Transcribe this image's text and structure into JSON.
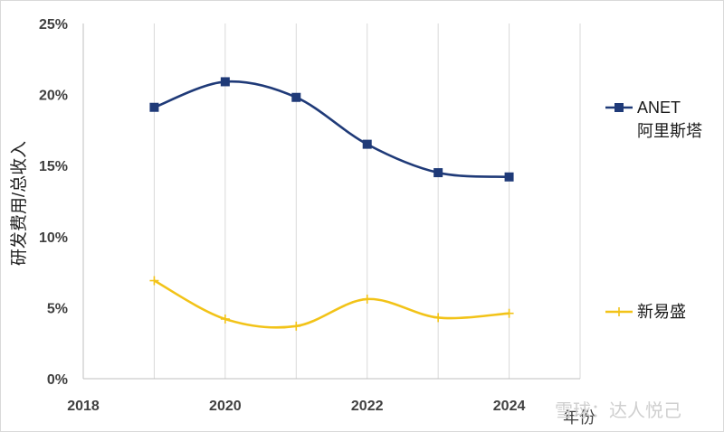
{
  "chart_data": {
    "type": "line",
    "title": "",
    "xlabel": "年份",
    "ylabel": "研发费用/总收入",
    "x_ticks": [
      2018,
      2020,
      2022,
      2024
    ],
    "y_ticks": [
      "0%",
      "5%",
      "10%",
      "15%",
      "20%",
      "25%"
    ],
    "xlim": [
      2018,
      2025
    ],
    "ylim": [
      0,
      25
    ],
    "grid": "vertical",
    "legend_position": "right",
    "x": [
      2019,
      2020,
      2021,
      2022,
      2023,
      2024
    ],
    "series": [
      {
        "name": "ANET\n阿里斯塔",
        "color": "#1f3a78",
        "marker": "square",
        "values": [
          19.1,
          20.9,
          19.8,
          16.5,
          14.5,
          14.2
        ]
      },
      {
        "name": "新易盛",
        "color": "#f2c318",
        "marker": "plus",
        "values": [
          6.9,
          4.2,
          3.7,
          5.6,
          4.3,
          4.6
        ]
      }
    ]
  },
  "watermark": {
    "text": "雪球：达人悦己"
  }
}
